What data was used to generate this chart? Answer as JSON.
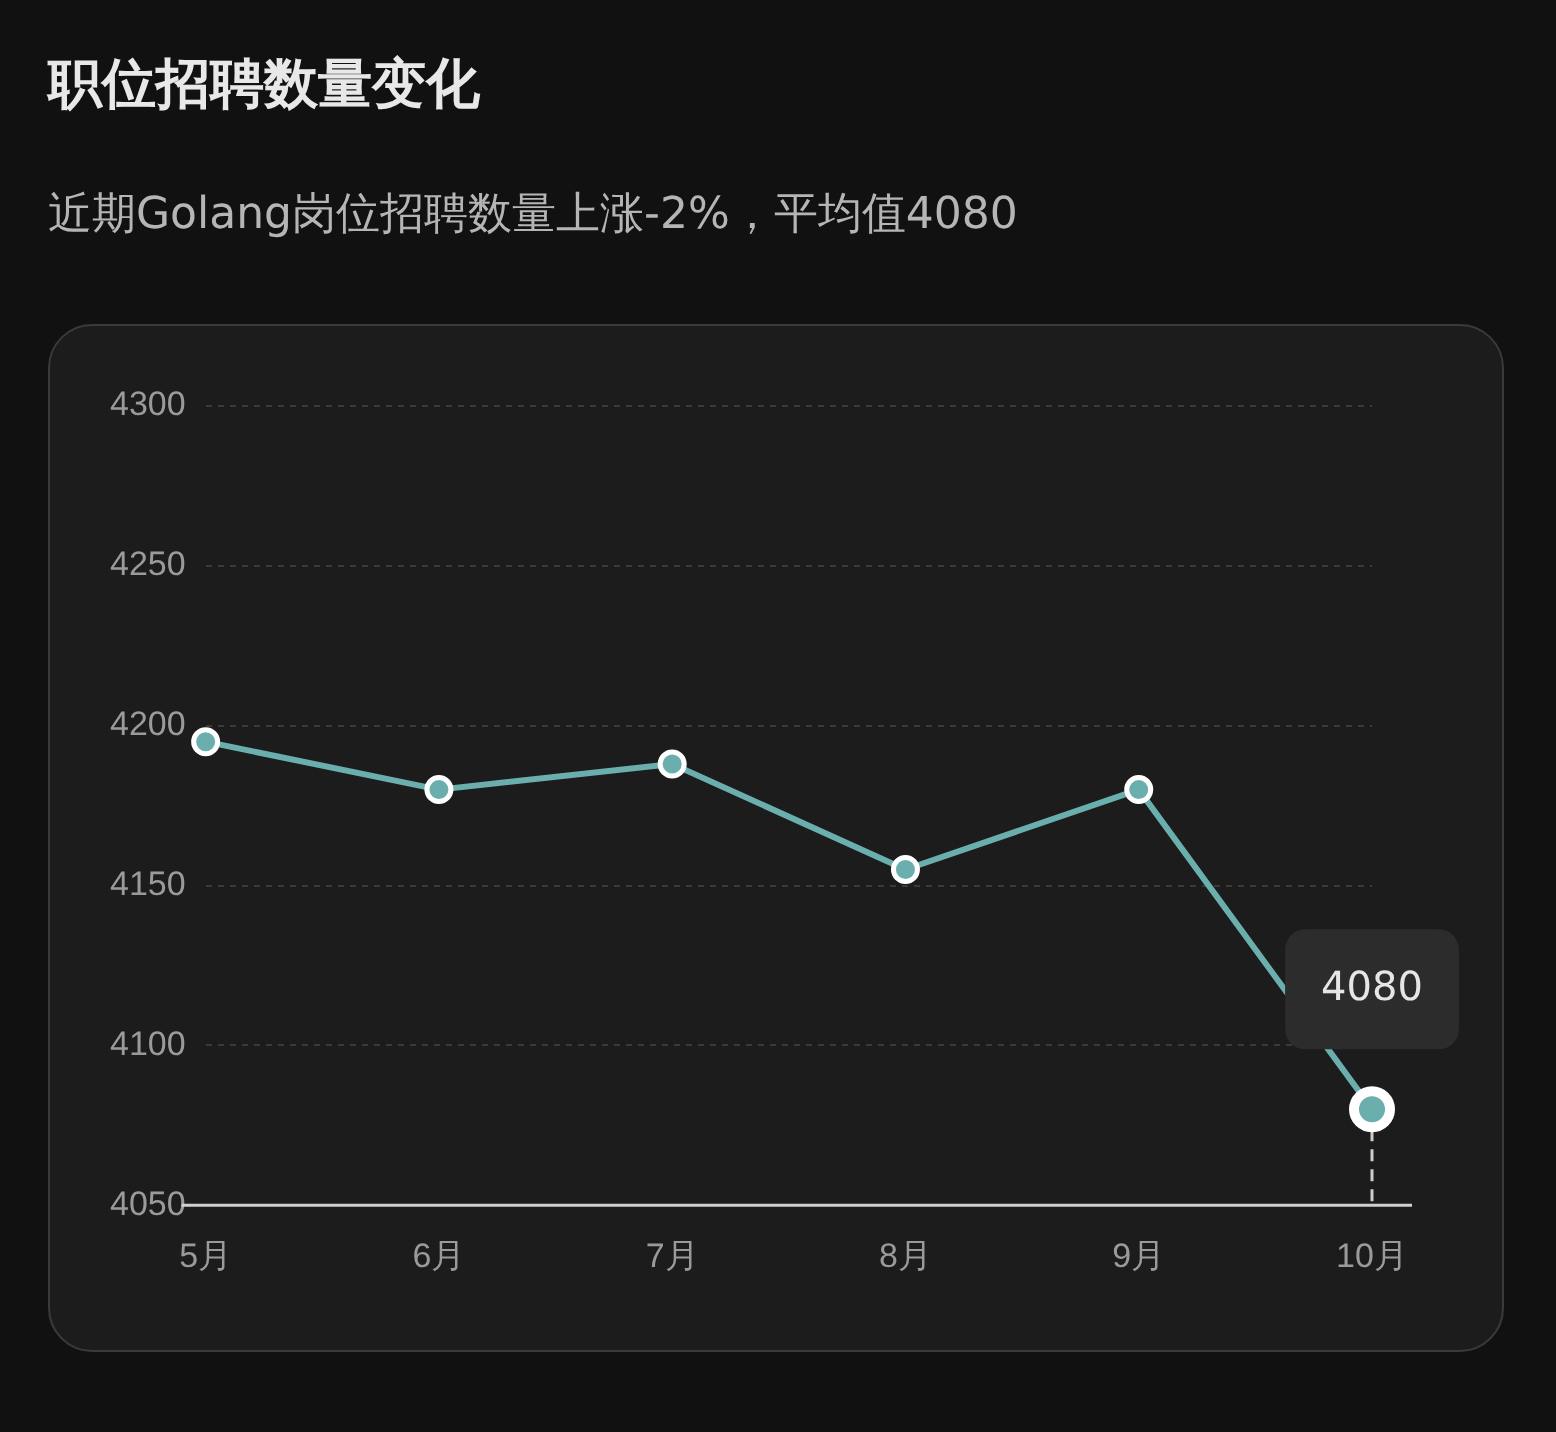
{
  "chart_data": {
    "type": "line",
    "title": "职位招聘数量变化",
    "subtitle": "近期Golang岗位招聘数量上涨-2%，平均值4080",
    "categories": [
      "5月",
      "6月",
      "7月",
      "8月",
      "9月",
      "10月"
    ],
    "series": [
      {
        "color": "#6aafae",
        "values": [
          4195,
          4180,
          4188,
          4155,
          4180,
          4080
        ]
      }
    ],
    "ylim": [
      4050,
      4300
    ],
    "yticks": [
      4050,
      4100,
      4150,
      4200,
      4250,
      4300
    ],
    "grid": "y",
    "legend": false,
    "marker": "circle",
    "line_style": "solid",
    "annotations": [
      {
        "text": "4080",
        "x": "10月",
        "y": 4080
      }
    ],
    "ref_lines": [
      {
        "axis": "x",
        "value": "10月",
        "color": "#cccccc",
        "line_style": "dashed"
      }
    ]
  }
}
